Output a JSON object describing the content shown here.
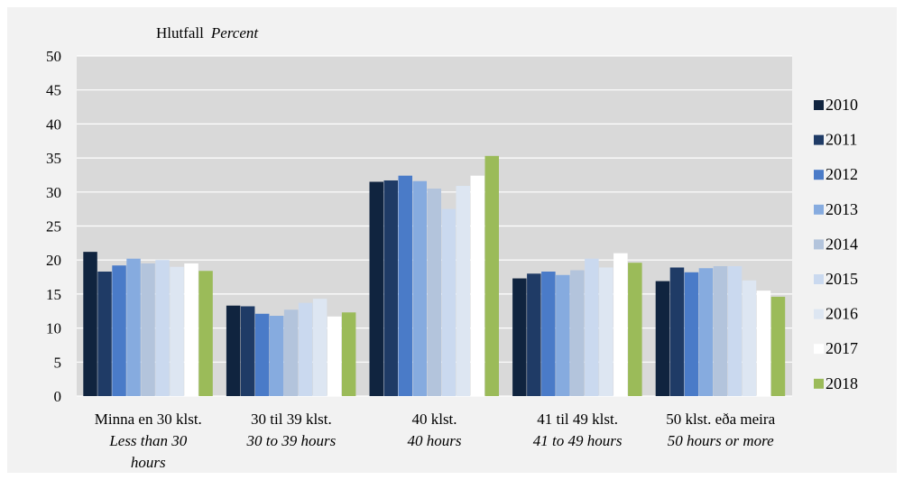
{
  "chart_data": {
    "type": "bar",
    "ylabel": "Hlutfall",
    "ylabel_en": "Percent",
    "ylim": [
      0,
      50
    ],
    "yticks": [
      0,
      5,
      10,
      15,
      20,
      25,
      30,
      35,
      40,
      45,
      50
    ],
    "grid": true,
    "legend_position": "right",
    "categories": [
      {
        "is": "Minna en 30 klst.",
        "en": "Less than 30 hours",
        "en_lines": [
          "Less than 30",
          "hours"
        ]
      },
      {
        "is": "30 til 39 klst.",
        "en": "30 to 39 hours",
        "en_lines": [
          "30 to 39 hours"
        ]
      },
      {
        "is": "40 klst.",
        "en": "40 hours",
        "en_lines": [
          "40 hours"
        ]
      },
      {
        "is": "41 til 49 klst.",
        "en": "41 to 49 hours",
        "en_lines": [
          "41 to 49 hours"
        ]
      },
      {
        "is": "50 klst. eða meira",
        "en": "50 hours or more",
        "en_lines": [
          "50 hours or more"
        ]
      }
    ],
    "series": [
      {
        "name": "2010",
        "color": "#10243f",
        "values": [
          21.2,
          13.3,
          31.5,
          17.3,
          16.9
        ]
      },
      {
        "name": "2011",
        "color": "#1f3b66",
        "values": [
          18.3,
          13.2,
          31.7,
          18.0,
          18.9
        ]
      },
      {
        "name": "2012",
        "color": "#4a7bc8",
        "values": [
          19.2,
          12.1,
          32.4,
          18.3,
          18.2
        ]
      },
      {
        "name": "2013",
        "color": "#86abdf",
        "values": [
          20.2,
          11.8,
          31.6,
          17.8,
          18.8
        ]
      },
      {
        "name": "2014",
        "color": "#b3c4dc",
        "values": [
          19.5,
          12.7,
          30.5,
          18.5,
          19.1
        ]
      },
      {
        "name": "2015",
        "color": "#cad9ef",
        "values": [
          20.0,
          13.7,
          27.5,
          20.2,
          19.1
        ]
      },
      {
        "name": "2016",
        "color": "#dde6f2",
        "values": [
          19.0,
          14.3,
          30.9,
          18.9,
          17.0
        ]
      },
      {
        "name": "2017",
        "color": "#ffffff",
        "values": [
          19.5,
          11.7,
          32.4,
          21.0,
          15.5
        ]
      },
      {
        "name": "2018",
        "color": "#9bbb59",
        "values": [
          18.4,
          12.3,
          35.3,
          19.6,
          14.6
        ]
      }
    ]
  }
}
